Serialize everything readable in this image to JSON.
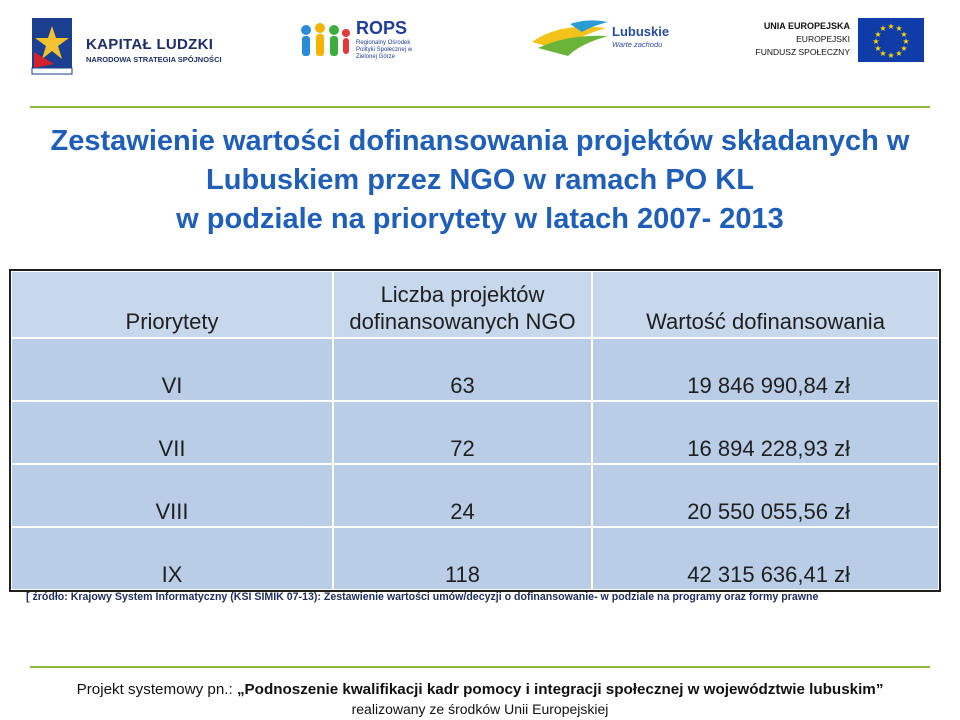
{
  "logos": {
    "kapital_ludzki": {
      "name": "KAPITAŁ LUDZKI",
      "subtitle": "NARODOWA STRATEGIA SPÓJNOŚCI"
    },
    "rops": {
      "name": "ROPS",
      "subtitle": "Regionalny Ośrodek Polityki Społecznej w Zielonej Górze"
    },
    "lubuskie": {
      "name": "Lubuskie",
      "subtitle": "Warte zachodu"
    },
    "ue": {
      "line1": "UNIA EUROPEJSKA",
      "line2": "EUROPEJSKI",
      "line3": "FUNDUSZ SPOŁECZNY"
    }
  },
  "title": {
    "line1": "Zestawienie wartości dofinansowania projektów składanych w",
    "line2": "Lubuskiem przez NGO w ramach PO KL",
    "line3": "w podziale na priorytety w latach 2007- 2013"
  },
  "table": {
    "headers": {
      "col1": "Priorytety",
      "col2_line1": "Liczba projektów",
      "col2_line2": "dofinansowanych NGO",
      "col3": "Wartość dofinansowania"
    },
    "rows": [
      {
        "priority": "VI",
        "count": "63",
        "value": "19 846 990,84 zł"
      },
      {
        "priority": "VII",
        "count": "72",
        "value": "16 894 228,93 zł"
      },
      {
        "priority": "VIII",
        "count": "24",
        "value": "20 550 055,56 zł"
      },
      {
        "priority": "IX",
        "count": "118",
        "value": "42 315 636,41 zł"
      }
    ]
  },
  "source": "[ źródło: Krajowy System Informatyczny (KSI SIMIK 07-13): Zestawienie wartości umów/decyzji o dofinansowanie- w podziale na programy oraz formy prawne",
  "footer": {
    "prefix": "Projekt systemowy pn.: ",
    "project": "„Podnoszenie kwalifikacji kadr pomocy i integracji społecznej w województwie lubuskim”",
    "line2": "realizowany ze środków Unii Europejskiej"
  },
  "colors": {
    "accent_green": "#8fb83d",
    "title_blue": "#1f5fb8",
    "table_fill": "#b9cde6"
  }
}
